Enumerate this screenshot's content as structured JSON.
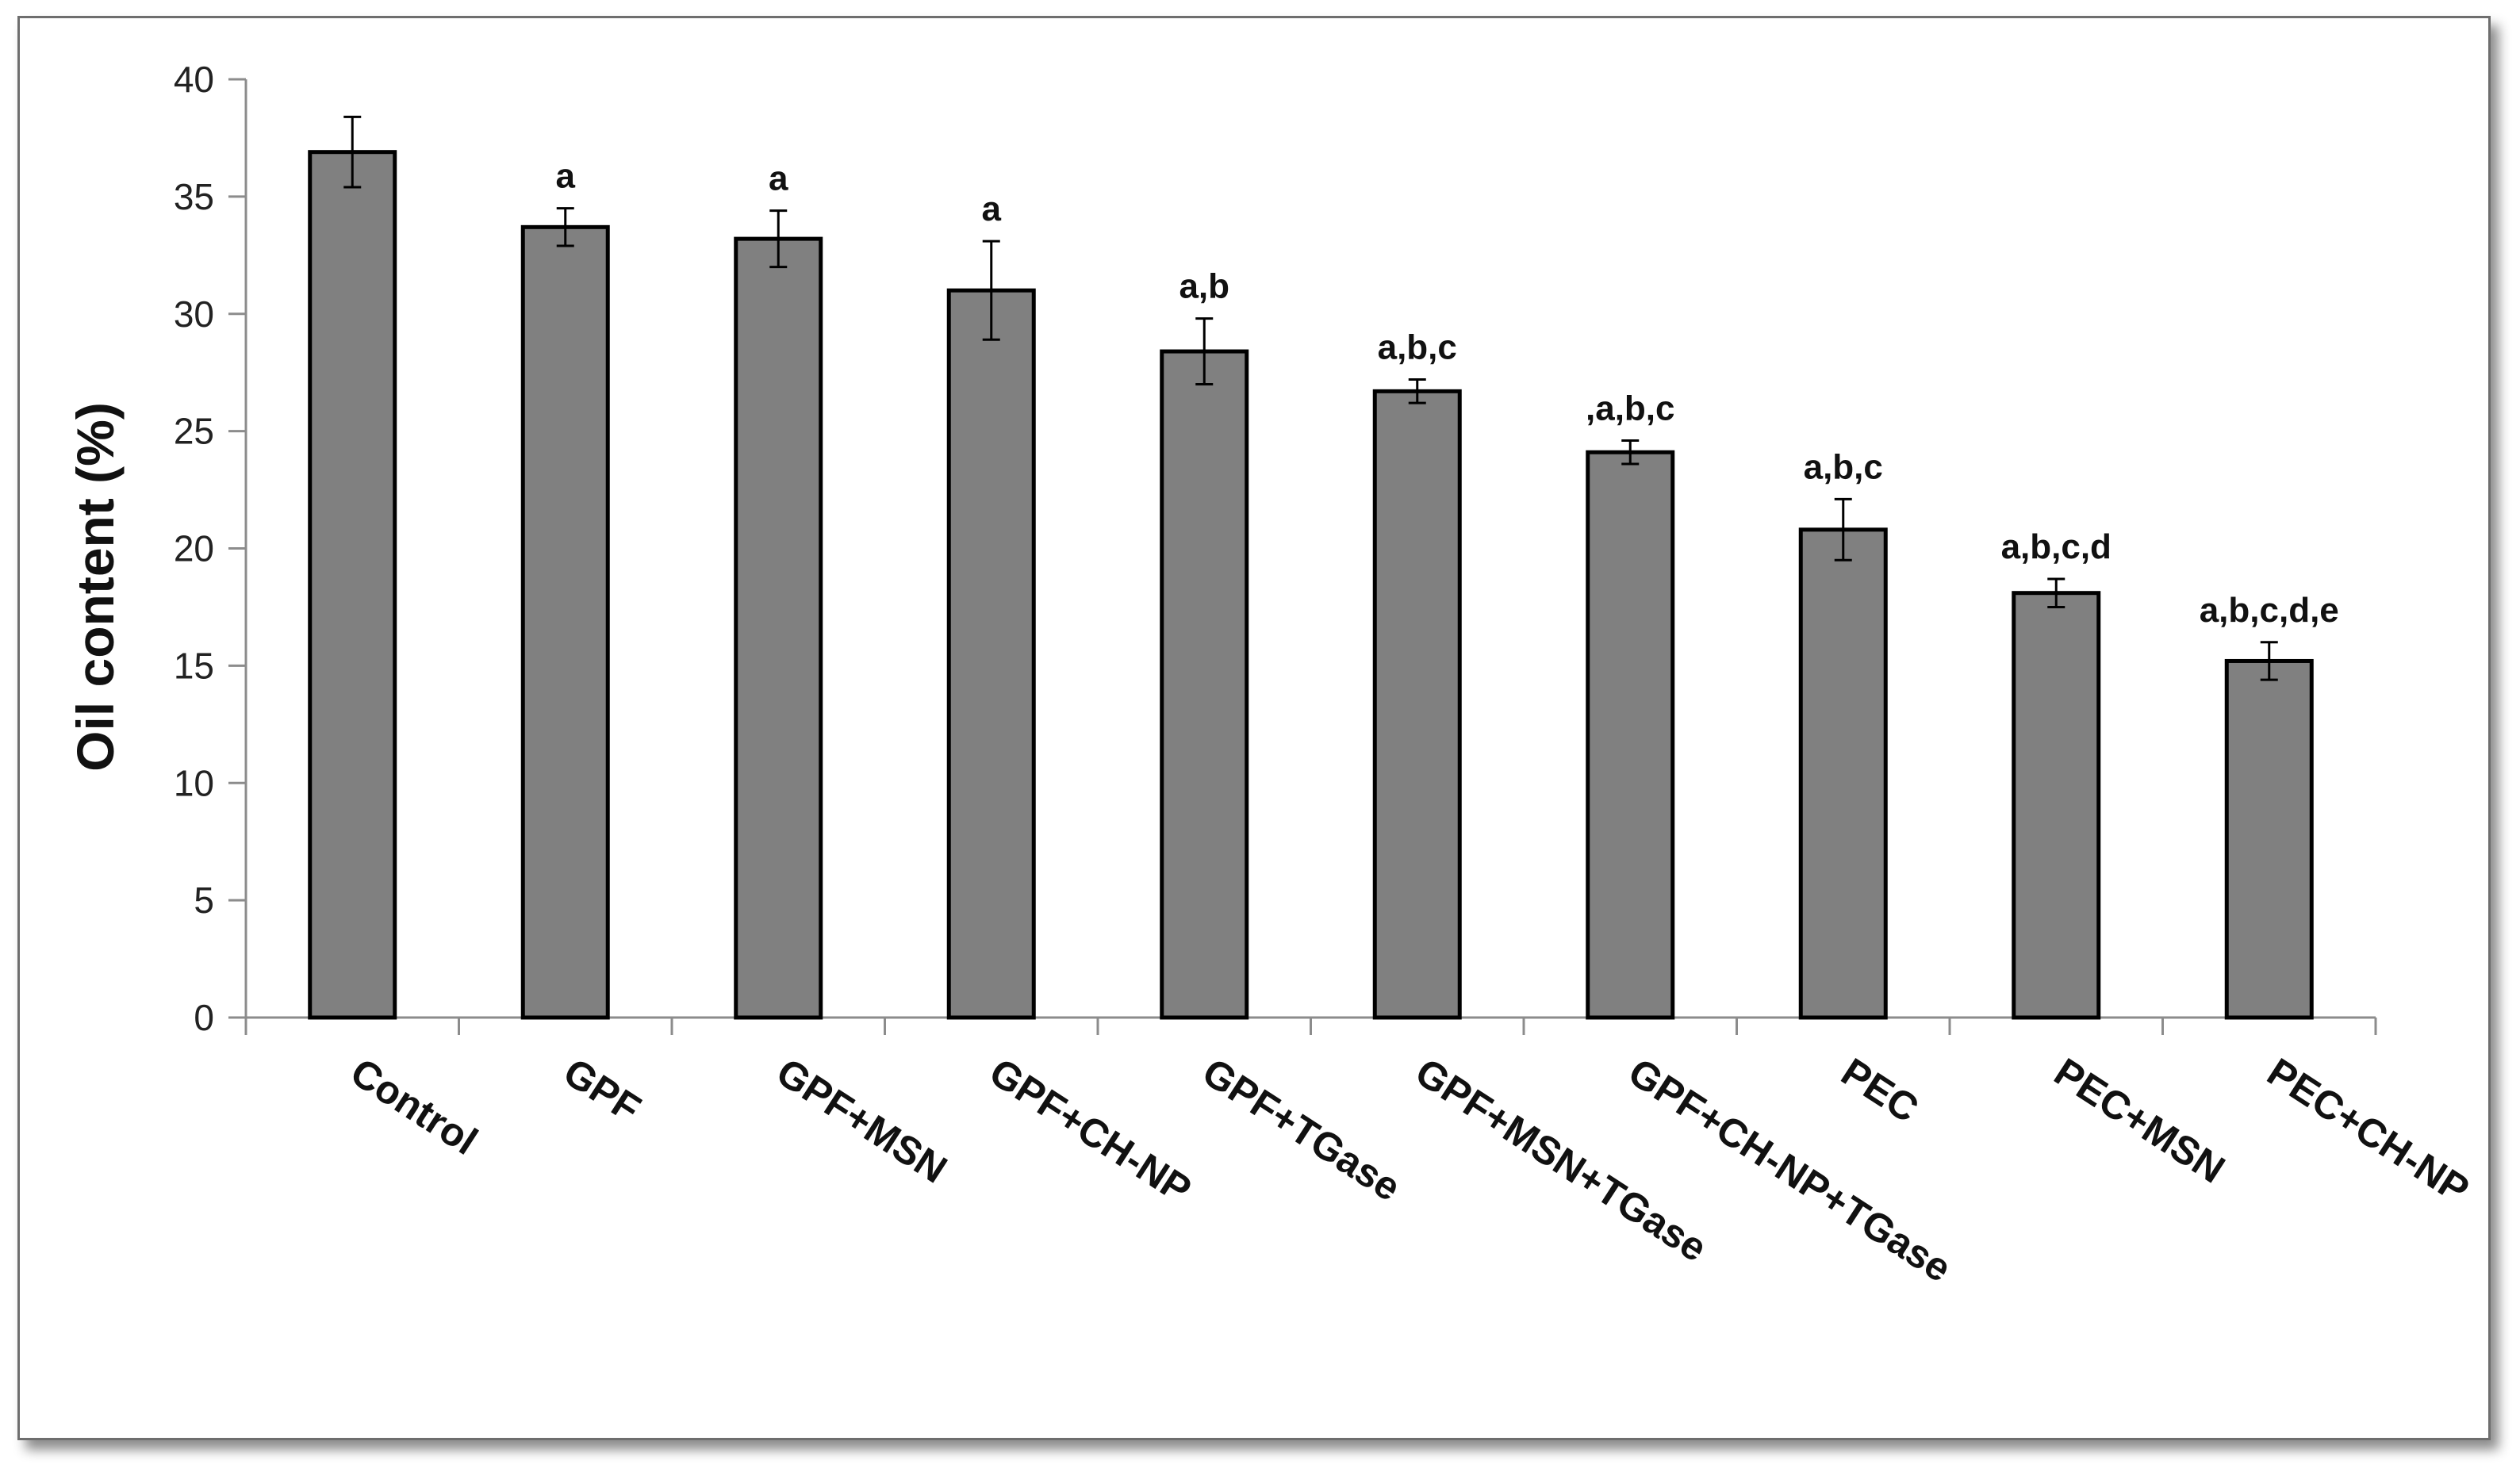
{
  "chart_data": {
    "type": "bar",
    "ylabel": "Oil content (%)",
    "xlabel": "",
    "ylim": [
      0,
      40
    ],
    "yticks": [
      0,
      5,
      10,
      15,
      20,
      25,
      30,
      35,
      40
    ],
    "grid": false,
    "categories": [
      "Control",
      "GPF",
      "GPF+MSN",
      "GPF+CH-NP",
      "GPF+TGase",
      "GPF+MSN+TGase",
      "GPF+CH-NP+TGase",
      "PEC",
      "PEC+MSN",
      "PEC+CH-NP"
    ],
    "values": [
      36.9,
      33.7,
      33.2,
      31.0,
      28.4,
      26.7,
      24.1,
      20.8,
      18.1,
      15.2
    ],
    "errors": [
      1.5,
      0.8,
      1.2,
      2.1,
      1.4,
      0.5,
      0.5,
      1.3,
      0.6,
      0.8
    ],
    "significance_labels": [
      "",
      "a",
      "a",
      "a",
      "a,b",
      "a,b,c",
      ",a,b,c",
      "a,b,c",
      "a,b,c,d",
      "a,b,c,d,e"
    ],
    "colors": {
      "bar_fill": "#808080",
      "bar_stroke": "#000000",
      "axis": "#8c8c8c"
    }
  }
}
